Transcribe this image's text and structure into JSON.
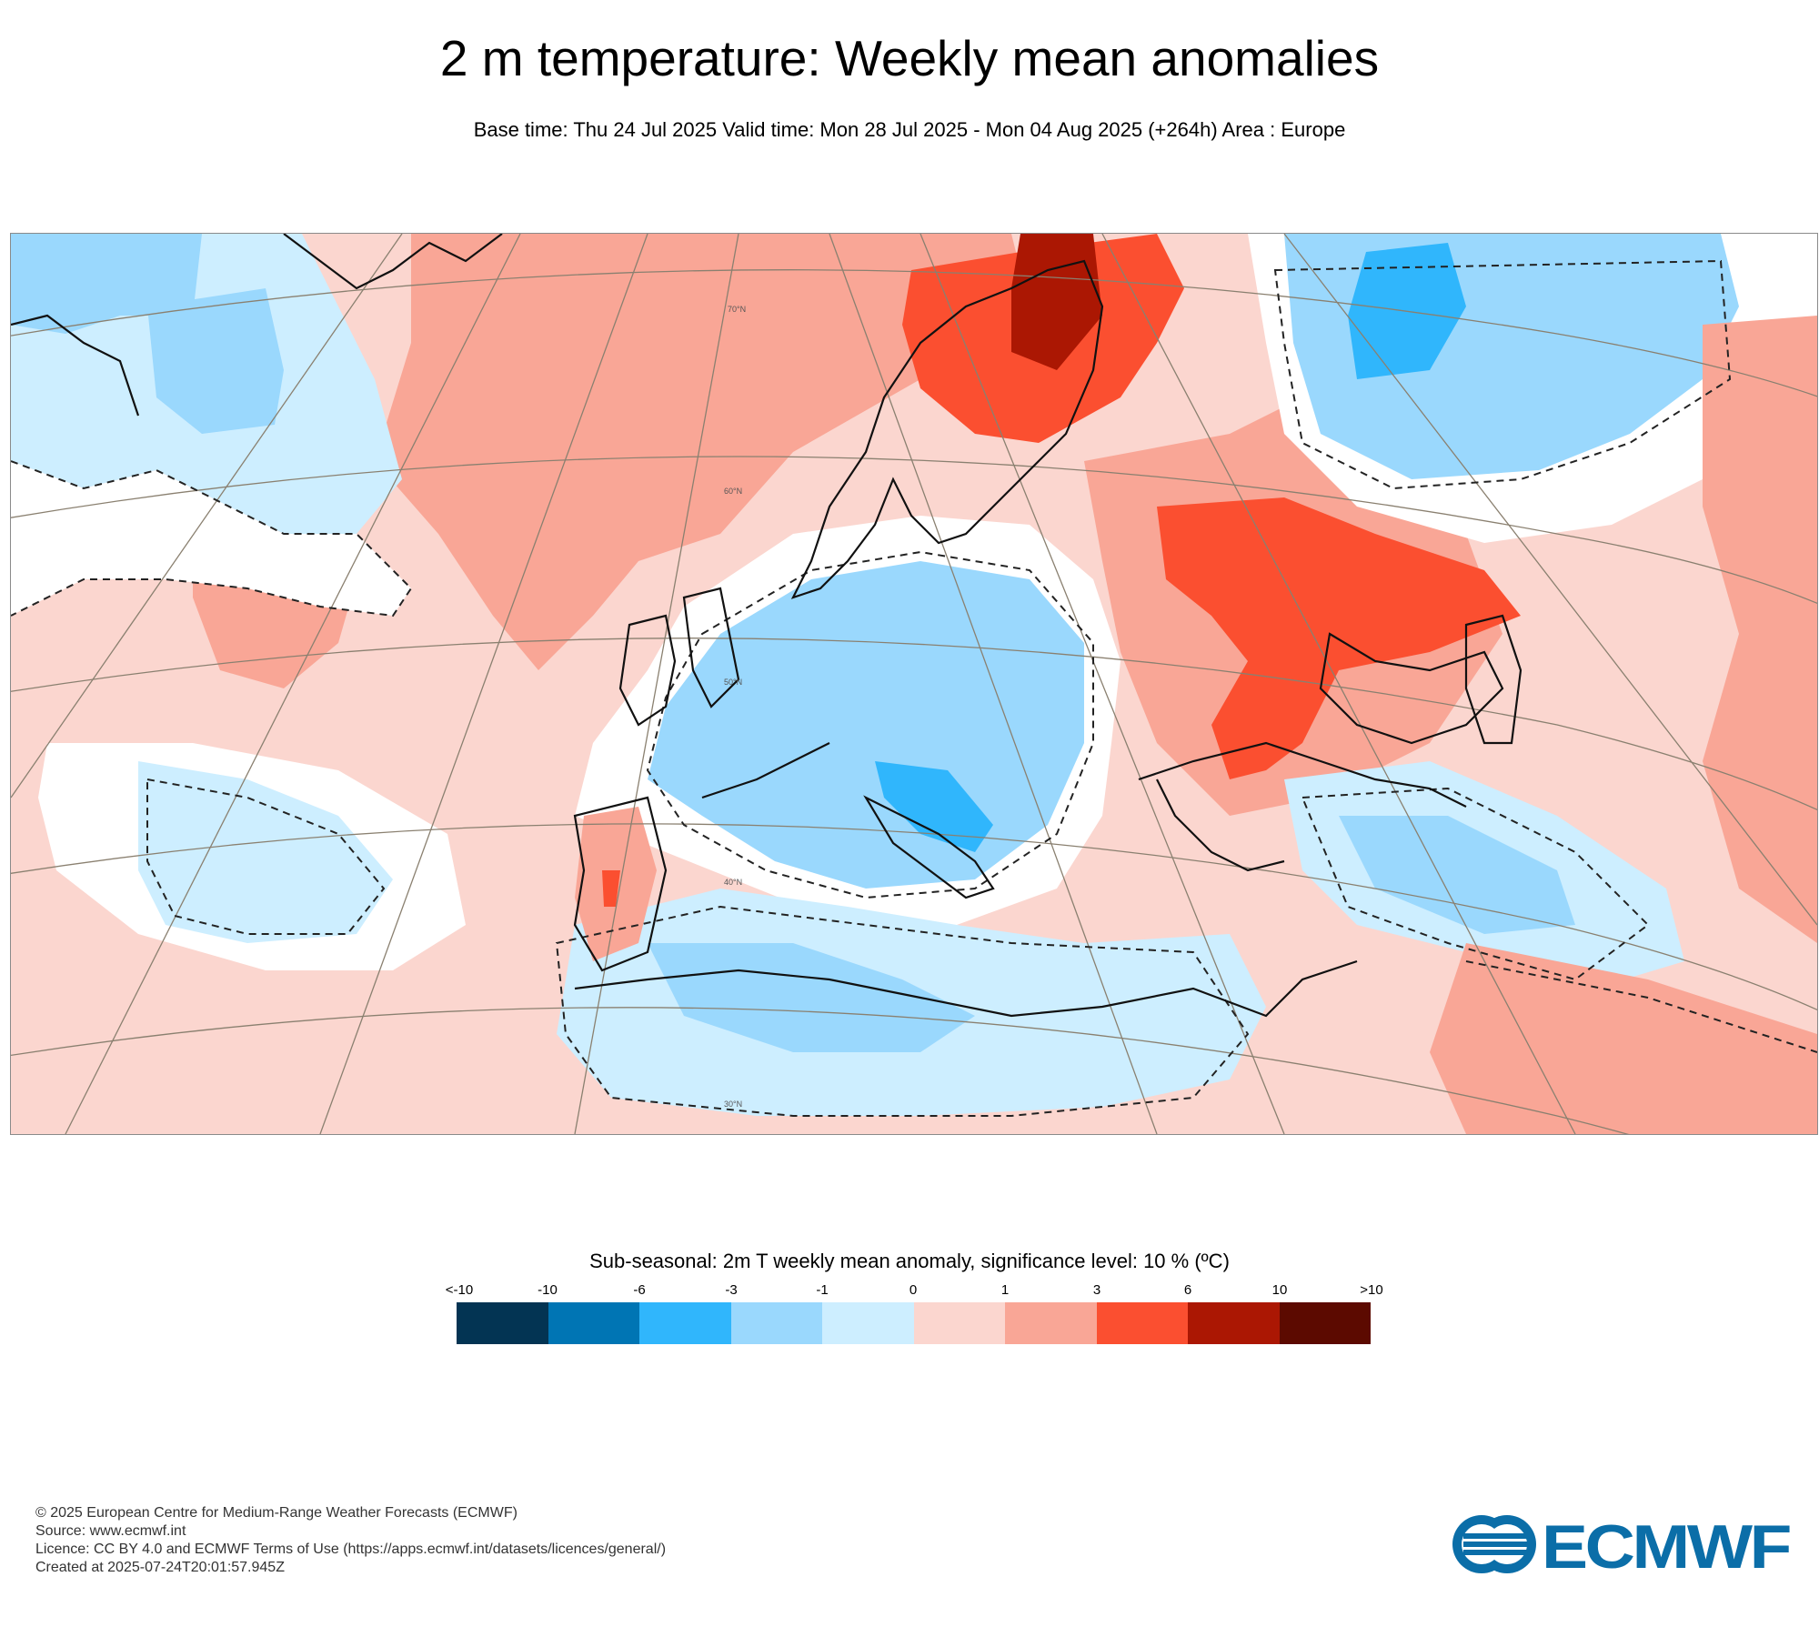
{
  "title": "2 m temperature: Weekly mean anomalies",
  "subtitle": "Base time: Thu 24 Jul 2025 Valid time: Mon 28 Jul 2025 - Mon 04 Aug 2025 (+264h) Area : Europe",
  "map": {
    "lat_labels": [
      "70°N",
      "60°N",
      "50°N",
      "40°N",
      "30°N"
    ],
    "colors": {
      "ocean_light_warm": "#fbd6cf",
      "warm": "#f9a696",
      "hot": "#fb4f30",
      "very_hot": "#ab1703",
      "extreme_hot": "#5c0a00",
      "neutral": "#ffffff",
      "cool_light": "#cdeeff",
      "cool": "#9ad8fd",
      "cold": "#30b6fc",
      "very_cold": "#0075b4",
      "extreme_cold": "#033453"
    }
  },
  "legend": {
    "title": "Sub-seasonal: 2m T weekly mean anomaly, significance level: 10 % (ºC)",
    "tick_labels": [
      "<-10",
      "-10",
      "-6",
      "-3",
      "-1",
      "0",
      "1",
      "3",
      "6",
      "10",
      ">10"
    ],
    "colors": [
      "#033453",
      "#0075b4",
      "#30b6fc",
      "#9ad8fd",
      "#cdeeff",
      "#fbd6cf",
      "#f9a696",
      "#fb4f30",
      "#ab1703",
      "#5c0a00"
    ]
  },
  "footer": {
    "copyright": "© 2025 European Centre for Medium-Range Weather Forecasts (ECMWF)",
    "source": "Source: www.ecmwf.int",
    "licence": "Licence: CC BY 4.0 and ECMWF Terms of Use (https://apps.ecmwf.int/datasets/licences/general/)",
    "created": "Created at 2025-07-24T20:01:57.945Z"
  },
  "logo": {
    "text": "ECMWF",
    "color": "#0b6ea8"
  }
}
